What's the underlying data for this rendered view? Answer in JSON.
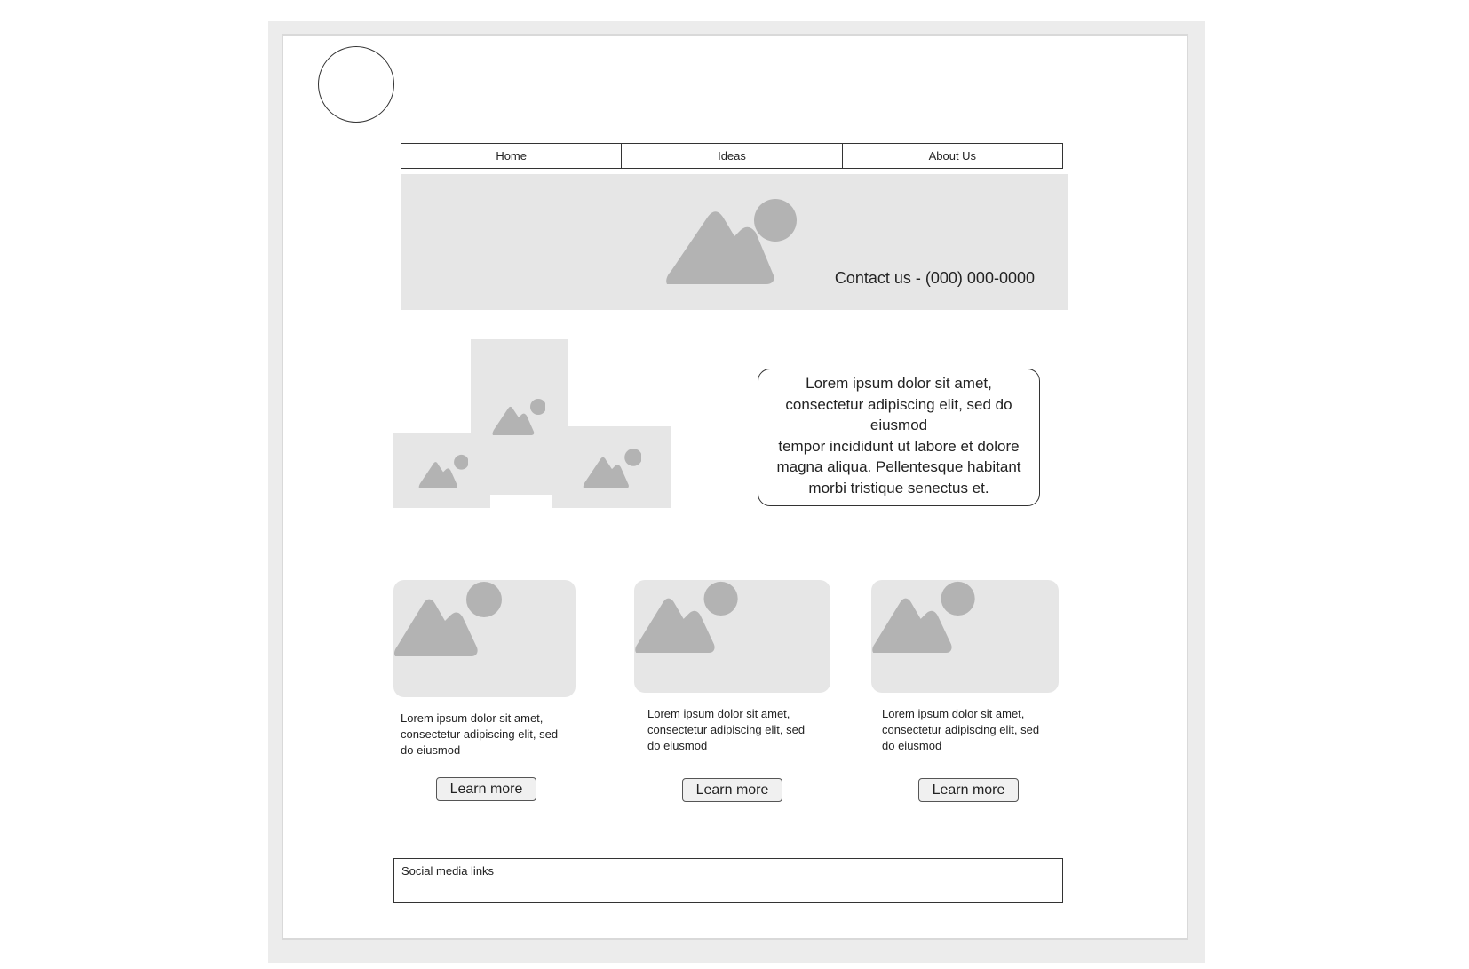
{
  "nav": {
    "items": [
      {
        "label": "Home"
      },
      {
        "label": "Ideas"
      },
      {
        "label": "About Us"
      }
    ]
  },
  "banner": {
    "contact_text": "Contact us - (000) 000-0000",
    "image_icon": "image-placeholder-icon"
  },
  "intro": {
    "text_lines": [
      "Lorem ipsum dolor sit amet,",
      "consectetur adipiscing elit, sed do",
      "eiusmod",
      "tempor incididunt ut labore et dolore",
      "magna aliqua. Pellentesque habitant",
      "morbi tristique senectus et."
    ]
  },
  "cards": [
    {
      "lines": [
        "Lorem ipsum dolor sit amet,",
        "consectetur adipiscing elit, sed",
        "do eiusmod"
      ],
      "button_label": "Learn more"
    },
    {
      "lines": [
        "Lorem ipsum dolor sit amet,",
        "consectetur adipiscing elit, sed",
        "do eiusmod"
      ],
      "button_label": "Learn more"
    },
    {
      "lines": [
        "Lorem ipsum dolor sit amet,",
        "consectetur adipiscing elit, sed",
        "do eiusmod"
      ],
      "button_label": "Learn more"
    }
  ],
  "footer": {
    "label": "Social media links"
  },
  "colors": {
    "placeholder_bg": "#e6e6e6",
    "placeholder_icon": "#b3b3b3"
  }
}
